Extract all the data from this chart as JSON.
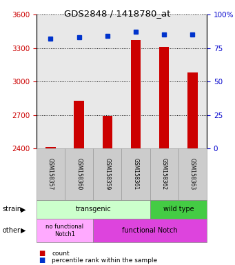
{
  "title": "GDS2848 / 1418780_at",
  "samples": [
    "GSM158357",
    "GSM158360",
    "GSM158359",
    "GSM158361",
    "GSM158362",
    "GSM158363"
  ],
  "counts": [
    2415,
    2830,
    2690,
    3370,
    3310,
    3080
  ],
  "percentiles": [
    82,
    83,
    84,
    87,
    85,
    85
  ],
  "ylim_left": [
    2400,
    3600
  ],
  "ylim_right": [
    0,
    100
  ],
  "yticks_left": [
    2400,
    2700,
    3000,
    3300,
    3600
  ],
  "yticks_right": [
    0,
    25,
    50,
    75,
    100
  ],
  "bar_color": "#cc0000",
  "dot_color": "#0033cc",
  "bar_width": 0.35,
  "transgenic_color": "#ccffcc",
  "wildtype_color": "#44cc44",
  "no_func_color": "#ffaaff",
  "func_color": "#dd44dd",
  "label_bg_color": "#cccccc",
  "legend_count_color": "#cc0000",
  "legend_dot_color": "#0033cc",
  "tick_color_left": "#cc0000",
  "tick_color_right": "#0000cc",
  "plot_bg": "#e8e8e8"
}
